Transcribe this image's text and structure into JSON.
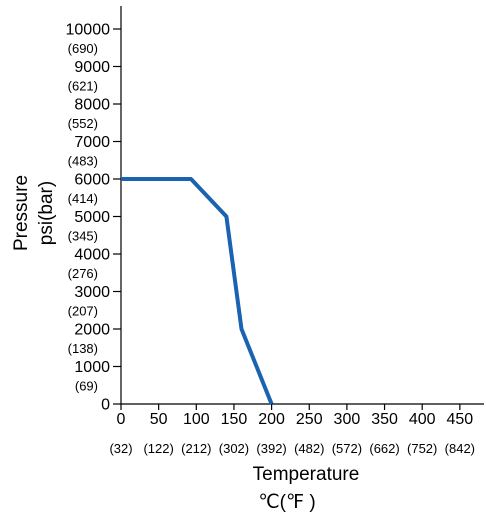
{
  "chart_data": {
    "type": "line",
    "xlabel": "Temperature",
    "xunit": "℃(℉ )",
    "ylabel": "Pressure",
    "yunit": "psi(bar)",
    "xlim": [
      0,
      480
    ],
    "ylim": [
      0,
      10500
    ],
    "x_ticks": [
      0,
      50,
      100,
      150,
      200,
      250,
      300,
      350,
      400,
      450
    ],
    "x_tick_labels": [
      "0",
      "50",
      "100",
      "150",
      "200",
      "250",
      "300",
      "350",
      "400",
      "450"
    ],
    "x_secondary_labels": [
      "(32)",
      "(122)",
      "(212)",
      "(302)",
      "(392)",
      "(482)",
      "(572)",
      "(662)",
      "(752)",
      "(842)"
    ],
    "y_ticks": [
      0,
      1000,
      2000,
      3000,
      4000,
      5000,
      6000,
      7000,
      8000,
      9000,
      10000
    ],
    "y_tick_labels": [
      "0",
      "1000",
      "2000",
      "3000",
      "4000",
      "5000",
      "6000",
      "7000",
      "8000",
      "9000",
      "10000"
    ],
    "y_secondary_labels": [
      "(69)",
      "(138)",
      "(207)",
      "(276)",
      "(345)",
      "(414)",
      "(483)",
      "(552)",
      "(621)",
      "(690)"
    ],
    "series": [
      {
        "x": [
          0,
          93,
          140,
          160,
          200
        ],
        "y": [
          6000,
          6000,
          5000,
          2000,
          0
        ],
        "color": "#1a63b0"
      }
    ],
    "grid": false
  }
}
